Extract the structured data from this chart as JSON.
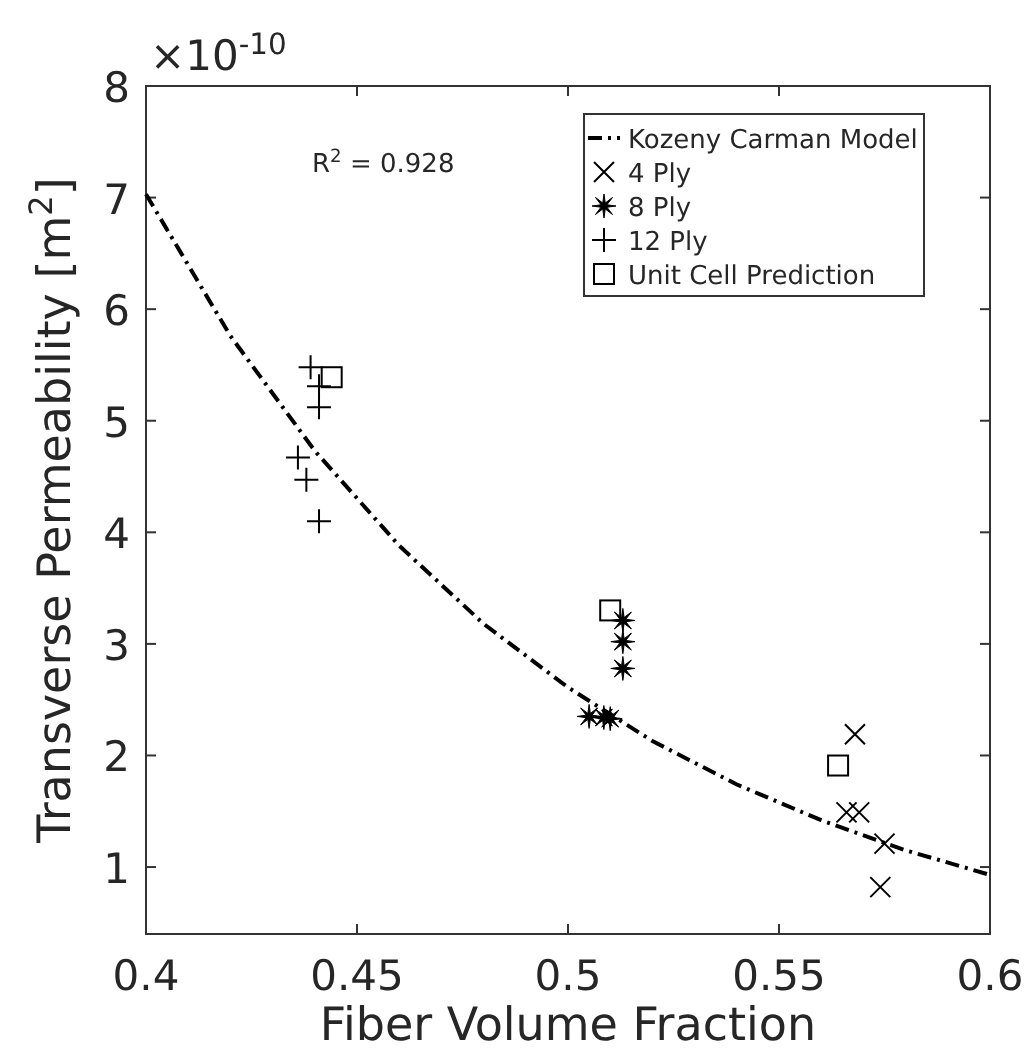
{
  "chart_data": {
    "type": "scatter",
    "xlabel": "Fiber Volume Fraction",
    "ylabel": "Transverse Permeability [m$^{2}$]",
    "xlim": [
      0.4,
      0.6
    ],
    "xticks": [
      0.4,
      0.45,
      0.5,
      0.55,
      0.6
    ],
    "ylim": [
      0.4,
      8
    ],
    "yticks": [
      1,
      2,
      3,
      4,
      5,
      6,
      7,
      8
    ],
    "annotations": [
      "×10$^{-10}$",
      "R$^{2}$ = 0.928"
    ],
    "legend": "top right",
    "grid": false,
    "series": [
      {
        "name": "Kozeny Carman Model",
        "type": "line",
        "color": "#000000",
        "line_style": "dashed",
        "marker": "none",
        "x": [
          0.4,
          0.42,
          0.44,
          0.46,
          0.48,
          0.5,
          0.52,
          0.54,
          0.56,
          0.58,
          0.6
        ],
        "values": [
          7.03,
          5.76,
          4.73,
          3.88,
          3.18,
          2.61,
          2.13,
          1.74,
          1.42,
          1.15,
          0.93
        ]
      },
      {
        "name": "4 Ply",
        "color": "#000000",
        "marker": "x",
        "x": [
          0.568,
          0.566,
          0.569,
          0.575,
          0.574
        ],
        "values": [
          2.19,
          1.49,
          1.49,
          1.21,
          0.82
        ]
      },
      {
        "name": "8 Ply",
        "color": "#000000",
        "marker": "star",
        "x": [
          0.513,
          0.513,
          0.513,
          0.505,
          0.51,
          0.5085
        ],
        "values": [
          3.21,
          3.02,
          2.78,
          2.35,
          2.33,
          2.34
        ]
      },
      {
        "name": "12 Ply",
        "color": "#000000",
        "marker": "cross",
        "x": [
          0.439,
          0.441,
          0.441,
          0.436,
          0.438,
          0.441
        ],
        "values": [
          5.48,
          5.31,
          5.12,
          4.67,
          4.47,
          4.1
        ]
      },
      {
        "name": "Unit Cell Prediction",
        "color": "#000000",
        "marker": "square",
        "x": [
          0.444,
          0.51,
          0.564
        ],
        "values": [
          5.39,
          3.3,
          1.91
        ]
      }
    ]
  }
}
